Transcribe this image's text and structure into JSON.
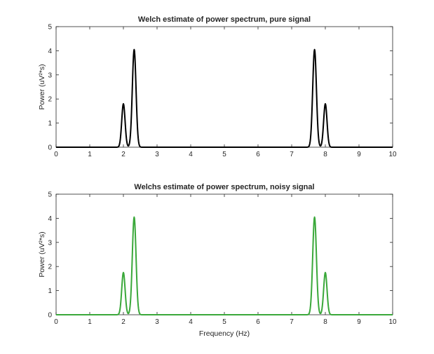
{
  "chart_data": [
    {
      "type": "line",
      "title": "Welch estimate of power spectrum, pure signal",
      "xlabel": "",
      "ylabel": "Power (uV²*s)",
      "xlim": [
        0,
        10
      ],
      "ylim": [
        0,
        5
      ],
      "xticks": [
        "0",
        "1",
        "2",
        "3",
        "4",
        "5",
        "6",
        "7",
        "8",
        "9",
        "10"
      ],
      "yticks": [
        "0",
        "1",
        "2",
        "3",
        "4",
        "5"
      ],
      "grid": false,
      "series": [
        {
          "color": "#000000",
          "peaks": [
            {
              "x": 2.0,
              "y": 1.8,
              "width": 0.05
            },
            {
              "x": 2.32,
              "y": 4.05,
              "width": 0.055
            },
            {
              "x": 7.68,
              "y": 4.05,
              "width": 0.055
            },
            {
              "x": 8.0,
              "y": 1.8,
              "width": 0.05
            }
          ]
        }
      ]
    },
    {
      "type": "line",
      "title": "Welchs estimate of power spectrum, noisy signal",
      "xlabel": "Frequency (Hz)",
      "ylabel": "Power (uV²*s)",
      "xlim": [
        0,
        10
      ],
      "ylim": [
        0,
        5
      ],
      "xticks": [
        "0",
        "1",
        "2",
        "3",
        "4",
        "5",
        "6",
        "7",
        "8",
        "9",
        "10"
      ],
      "yticks": [
        "0",
        "1",
        "2",
        "3",
        "4",
        "5"
      ],
      "grid": false,
      "series": [
        {
          "color": "#3aa83a",
          "peaks": [
            {
              "x": 2.0,
              "y": 1.75,
              "width": 0.05
            },
            {
              "x": 2.32,
              "y": 4.05,
              "width": 0.055
            },
            {
              "x": 7.68,
              "y": 4.05,
              "width": 0.055
            },
            {
              "x": 8.0,
              "y": 1.75,
              "width": 0.05
            }
          ]
        }
      ]
    }
  ]
}
